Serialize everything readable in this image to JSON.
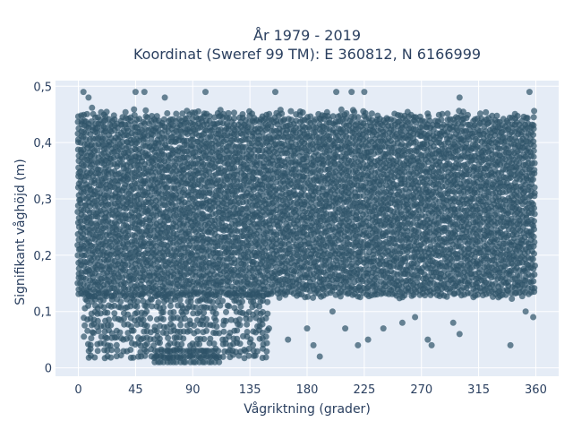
{
  "chart_data": {
    "type": "scatter",
    "title_line1": "År 1979 - 2019",
    "title_line2": "Koordinat (Sweref 99 TM): E 360812, N 6166999",
    "xlabel": "Vågriktning (grader)",
    "ylabel": "Signifikant våghöjd (m)",
    "xlim": [
      -18,
      378
    ],
    "ylim": [
      -0.015,
      0.51
    ],
    "x_ticks": [
      0,
      45,
      90,
      135,
      180,
      225,
      270,
      315,
      360
    ],
    "x_tick_labels": [
      "0",
      "45",
      "90",
      "135",
      "180",
      "225",
      "270",
      "315",
      "360"
    ],
    "y_ticks": [
      0,
      0.1,
      0.2,
      0.3,
      0.4,
      0.5
    ],
    "y_tick_labels": [
      "0",
      "0,1",
      "0,2",
      "0,3",
      "0,4",
      "0,5"
    ],
    "grid": true,
    "background_color": "#e5ecf6",
    "marker_color": "#2e5368",
    "marker_opacity": 0.7,
    "point_density": "dense cloud from 0 to 360 degrees, bulk between 0.13 and 0.45 m",
    "bands": [
      {
        "x": [
          0,
          360
        ],
        "y": [
          0.13,
          0.44
        ]
      },
      {
        "x": [
          5,
          150
        ],
        "y": [
          0.02,
          0.13
        ]
      },
      {
        "x": [
          60,
          110
        ],
        "y": [
          0.01,
          0.03
        ]
      }
    ],
    "sparse_points": [
      {
        "x": 4,
        "y": 0.49
      },
      {
        "x": 8,
        "y": 0.48
      },
      {
        "x": 45,
        "y": 0.49
      },
      {
        "x": 52,
        "y": 0.49
      },
      {
        "x": 68,
        "y": 0.48
      },
      {
        "x": 100,
        "y": 0.49
      },
      {
        "x": 155,
        "y": 0.49
      },
      {
        "x": 203,
        "y": 0.49
      },
      {
        "x": 215,
        "y": 0.49
      },
      {
        "x": 225,
        "y": 0.49
      },
      {
        "x": 300,
        "y": 0.48
      },
      {
        "x": 355,
        "y": 0.49
      },
      {
        "x": 150,
        "y": 0.07
      },
      {
        "x": 165,
        "y": 0.05
      },
      {
        "x": 180,
        "y": 0.07
      },
      {
        "x": 185,
        "y": 0.04
      },
      {
        "x": 190,
        "y": 0.02
      },
      {
        "x": 200,
        "y": 0.1
      },
      {
        "x": 210,
        "y": 0.07
      },
      {
        "x": 220,
        "y": 0.04
      },
      {
        "x": 228,
        "y": 0.05
      },
      {
        "x": 240,
        "y": 0.07
      },
      {
        "x": 255,
        "y": 0.08
      },
      {
        "x": 265,
        "y": 0.09
      },
      {
        "x": 275,
        "y": 0.05
      },
      {
        "x": 278,
        "y": 0.04
      },
      {
        "x": 295,
        "y": 0.08
      },
      {
        "x": 300,
        "y": 0.06
      },
      {
        "x": 340,
        "y": 0.04
      },
      {
        "x": 352,
        "y": 0.1
      },
      {
        "x": 358,
        "y": 0.09
      }
    ]
  }
}
